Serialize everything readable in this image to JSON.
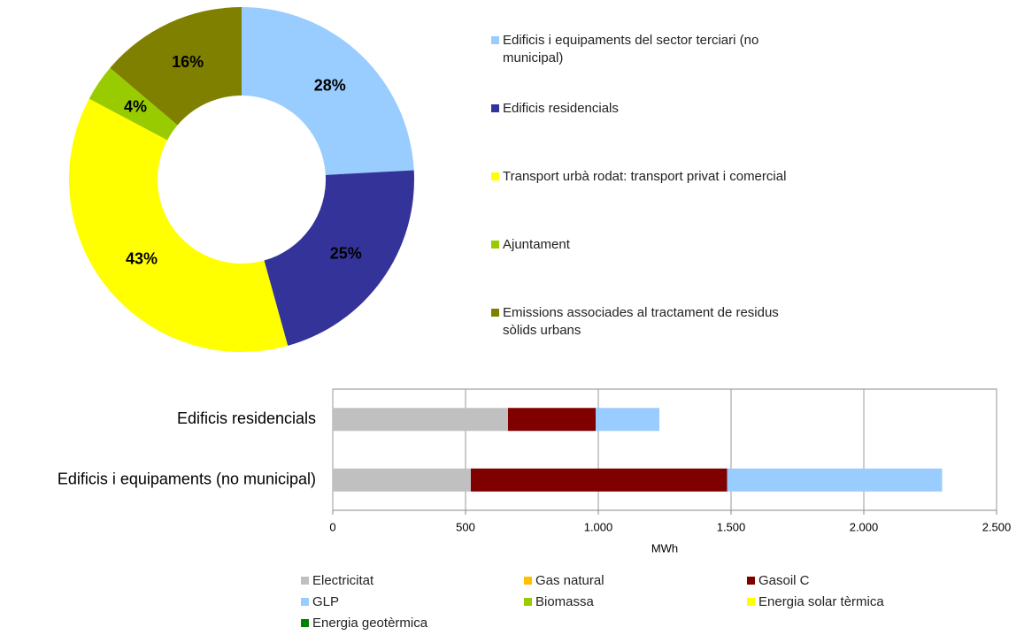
{
  "chart_data": [
    {
      "type": "donut",
      "categories": [
        "Edificis i equipaments del sector terciari (no municipal)",
        "Edificis residencials",
        "Transport urbà rodat: transport privat i comercial",
        "Ajuntament",
        "Emissions associades al tractament de residus sòlids urbans"
      ],
      "values": [
        28,
        25,
        43,
        4,
        16
      ],
      "value_labels": [
        "28%",
        "25%",
        "43%",
        "4%",
        "16%"
      ],
      "colors": [
        "#99ccff",
        "#333399",
        "#ffff00",
        "#99cc00",
        "#808000"
      ]
    },
    {
      "type": "stacked_barh",
      "categories": [
        "Edificis residencials",
        "Edificis i equipaments (no municipal)"
      ],
      "x_label": "MWh",
      "xlim": [
        0,
        2500
      ],
      "xticks": [
        0,
        500,
        {
          "value": 1000,
          "label": "1.000"
        },
        {
          "value": 1500,
          "label": "1.500"
        },
        {
          "value": 2000,
          "label": "2.000"
        },
        {
          "value": 2500,
          "label": "2.500"
        }
      ],
      "grid": true,
      "series": [
        {
          "name": "Electricitat",
          "color": "#c0c0c0",
          "values": [
            660,
            520
          ]
        },
        {
          "name": "Gas natural",
          "color": "#ffc000",
          "values": [
            0,
            0
          ]
        },
        {
          "name": "Gasoil C",
          "color": "#800000",
          "values": [
            330,
            965
          ]
        },
        {
          "name": "GLP",
          "color": "#99ccff",
          "values": [
            240,
            810
          ]
        },
        {
          "name": "Biomassa",
          "color": "#99cc00",
          "values": [
            0,
            0
          ]
        },
        {
          "name": "Energia solar tèrmica",
          "color": "#ffff00",
          "values": [
            0,
            0
          ]
        },
        {
          "name": "Energia geotèrmica",
          "color": "#008000",
          "values": [
            0,
            0
          ]
        }
      ]
    }
  ]
}
